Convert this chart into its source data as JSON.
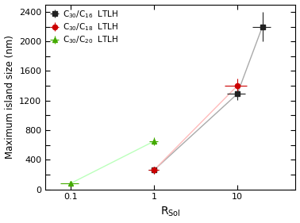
{
  "xlabel": "R$_\\mathregular{Sol}$",
  "ylabel": "Maximum island size (nm)",
  "series": [
    {
      "label": "C$_{30}$/C$_{16}$  LTLH",
      "color": "#222222",
      "marker": "s",
      "x": [
        1.0,
        10.0,
        20.0
      ],
      "y": [
        260,
        1290,
        2200
      ],
      "xerr": [
        0.15,
        2.5,
        5.0
      ],
      "yerr": [
        50,
        80,
        200
      ]
    },
    {
      "label": "C$_{30}$/C$_{18}$  LTLH",
      "color": "#cc0000",
      "marker": "o",
      "x": [
        1.0,
        10.0
      ],
      "y": [
        260,
        1400
      ],
      "xerr": [
        0.15,
        3.0
      ],
      "yerr": [
        50,
        100
      ]
    },
    {
      "label": "C$_{30}$/C$_{20}$  LTLH",
      "color": "#44aa00",
      "marker": "^",
      "x": [
        0.1,
        1.0
      ],
      "y": [
        80,
        650
      ],
      "xerr": [
        0.025,
        0.12
      ],
      "yerr": [
        30,
        50
      ]
    }
  ],
  "xlim": [
    0.05,
    50
  ],
  "ylim": [
    0,
    2500
  ],
  "yticks": [
    0,
    200,
    400,
    600,
    800,
    1000,
    1200,
    1400,
    1600,
    1800,
    2000,
    2200,
    2400
  ],
  "xticks": [
    0.1,
    1,
    10
  ],
  "line_colors": [
    "#aaaaaa",
    "#ffbbbb",
    "#bbffbb"
  ]
}
